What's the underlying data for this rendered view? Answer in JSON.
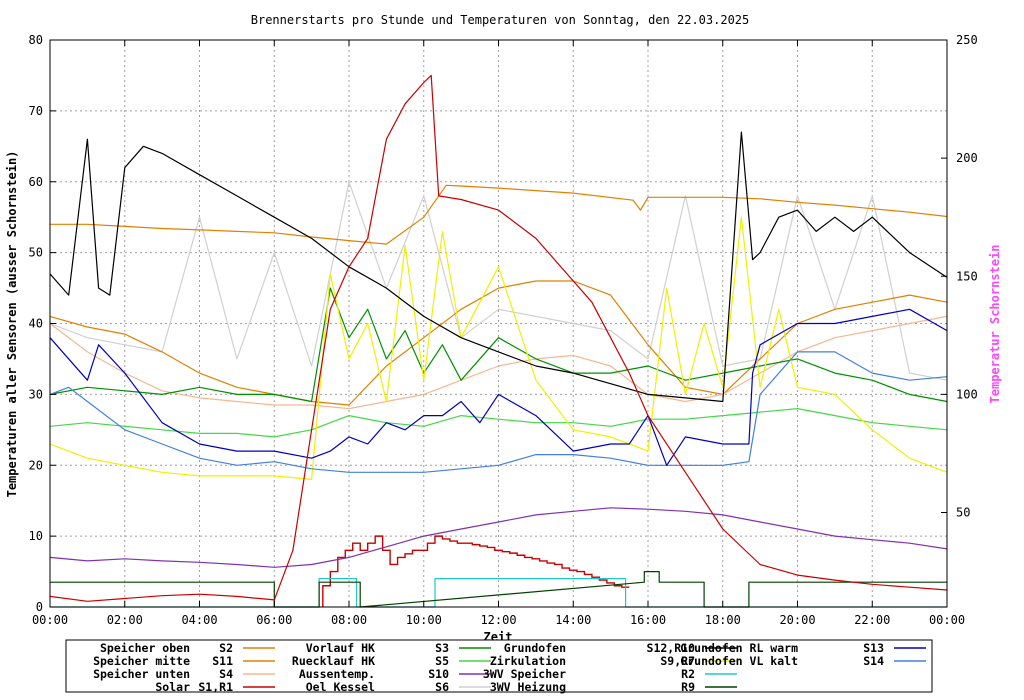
{
  "chart_data": {
    "type": "line",
    "title": "Brennerstarts pro Stunde und Temperaturen von Sonntag, den 22.03.2025",
    "xlabel": "Zeit",
    "ylabel": "Temperaturen aller Sensoren (ausser Schornstein)",
    "y2label": "Temperatur Schornstein",
    "xlim": [
      0,
      24
    ],
    "ylim": [
      0,
      80
    ],
    "y2lim": [
      10,
      250
    ],
    "grid": true,
    "legend": "bottom",
    "x_ticks": [
      {
        "v": 0,
        "label": "00:00"
      },
      {
        "v": 2,
        "label": "02:00"
      },
      {
        "v": 4,
        "label": "04:00"
      },
      {
        "v": 6,
        "label": "06:00"
      },
      {
        "v": 8,
        "label": "08:00"
      },
      {
        "v": 10,
        "label": "10:00"
      },
      {
        "v": 12,
        "label": "12:00"
      },
      {
        "v": 14,
        "label": "14:00"
      },
      {
        "v": 16,
        "label": "16:00"
      },
      {
        "v": 18,
        "label": "18:00"
      },
      {
        "v": 20,
        "label": "20:00"
      },
      {
        "v": 22,
        "label": "22:00"
      },
      {
        "v": 24,
        "label": "00:00"
      }
    ],
    "y_ticks": [
      {
        "v": 0,
        "label": "0"
      },
      {
        "v": 10,
        "label": "10"
      },
      {
        "v": 20,
        "label": "20"
      },
      {
        "v": 30,
        "label": "30"
      },
      {
        "v": 40,
        "label": "40"
      },
      {
        "v": 50,
        "label": "50"
      },
      {
        "v": 60,
        "label": "60"
      },
      {
        "v": 70,
        "label": "70"
      },
      {
        "v": 80,
        "label": "80"
      }
    ],
    "y2_ticks": [
      {
        "v": 50,
        "label": "50"
      },
      {
        "v": 100,
        "label": "100"
      },
      {
        "v": 150,
        "label": "150"
      },
      {
        "v": 200,
        "label": "200"
      },
      {
        "v": 250,
        "label": "250"
      }
    ],
    "series": [
      {
        "name": "Speicher oben",
        "code": "S2",
        "color": "#e08000",
        "x": [
          0,
          1,
          2,
          3,
          4,
          5,
          6,
          7,
          8,
          9,
          10,
          10.6,
          11,
          12,
          14,
          15.6,
          15.8,
          16,
          17,
          18,
          19,
          20,
          21,
          22,
          23,
          24
        ],
        "y": [
          54,
          54,
          53.7,
          53.4,
          53.2,
          53,
          52.8,
          52.2,
          51.7,
          51.2,
          55,
          59.5,
          59.4,
          59.1,
          58.4,
          57.4,
          56,
          57.8,
          57.8,
          57.8,
          57.6,
          57.1,
          56.7,
          56.2,
          55.7,
          55.1
        ]
      },
      {
        "name": "Speicher mitte",
        "code": "S11",
        "color": "#e08000",
        "x": [
          0,
          1,
          2,
          3,
          4,
          5,
          6,
          7,
          8,
          9,
          10,
          11,
          12,
          13,
          14,
          15,
          16,
          17,
          18,
          19,
          20,
          21,
          22,
          23,
          24
        ],
        "y": [
          41,
          39.5,
          38.5,
          36,
          33,
          31,
          30,
          29,
          28.5,
          34,
          38,
          42,
          45,
          46,
          46,
          44,
          37,
          31,
          30,
          35,
          40,
          42,
          43,
          44,
          43
        ]
      },
      {
        "name": "Speicher unten",
        "code": "S4",
        "color": "#f4b890",
        "x": [
          0,
          1,
          2,
          3,
          4,
          5,
          6,
          7,
          8,
          9,
          10,
          11,
          12,
          13,
          14,
          15,
          16,
          17,
          18,
          19,
          20,
          21,
          22,
          23,
          24
        ],
        "y": [
          40,
          36,
          33,
          30.5,
          29.5,
          29,
          28.5,
          28.5,
          28,
          29,
          30,
          32,
          34,
          35,
          35.5,
          34,
          30,
          29,
          30,
          33,
          36,
          38,
          39,
          40,
          41
        ]
      },
      {
        "name": "Solar",
        "code": "S1,R1",
        "color": "#c80000",
        "x": [
          0,
          1,
          2,
          3,
          4,
          5,
          6,
          6.5,
          7,
          7.5,
          8,
          8.5,
          9,
          9.5,
          10,
          10.2,
          10.4,
          11,
          12,
          13,
          14,
          14.5,
          15,
          15.5,
          16,
          17,
          18,
          19,
          20,
          21,
          22,
          23,
          24
        ],
        "y": [
          1.5,
          0.8,
          1.2,
          1.6,
          1.8,
          1.5,
          1,
          8,
          25,
          42,
          48,
          52,
          66,
          71,
          74,
          75,
          58,
          57.5,
          56,
          52,
          46,
          43,
          38,
          33,
          27,
          19,
          11,
          6,
          4.5,
          3.8,
          3.2,
          2.8,
          2.4
        ]
      },
      {
        "name": "Vorlauf HK",
        "code": "S3",
        "color": "#009000",
        "x": [
          0,
          1,
          2,
          3,
          4,
          5,
          6,
          7,
          7.5,
          8,
          8.5,
          9,
          9.5,
          10,
          10.5,
          11,
          12,
          13,
          14,
          15,
          16,
          17,
          18,
          19,
          20,
          21,
          22,
          23,
          24
        ],
        "y": [
          30,
          31,
          30.5,
          30,
          31,
          30,
          30,
          29,
          45,
          38,
          42,
          35,
          39,
          33,
          37,
          32,
          38,
          35,
          33,
          33,
          34,
          32,
          33,
          34,
          35,
          33,
          32,
          30,
          29
        ]
      },
      {
        "name": "Ruecklauf HK",
        "code": "S5",
        "color": "#44d844",
        "x": [
          0,
          1,
          2,
          3,
          4,
          5,
          6,
          7,
          8,
          9,
          10,
          11,
          12,
          13,
          14,
          15,
          16,
          17,
          18,
          19,
          20,
          21,
          22,
          23,
          24
        ],
        "y": [
          25.5,
          26,
          25.5,
          25,
          24.5,
          24.5,
          24,
          25,
          27,
          26,
          25.5,
          27,
          26.5,
          26,
          26,
          25.5,
          26.5,
          26.5,
          27,
          27.5,
          28,
          27,
          26,
          25.5,
          25
        ]
      },
      {
        "name": "Aussentemp.",
        "code": "S10",
        "color": "#8030b0",
        "x": [
          0,
          1,
          2,
          3,
          4,
          5,
          6,
          7,
          8,
          9,
          10,
          11,
          12,
          13,
          14,
          15,
          16,
          17,
          18,
          19,
          20,
          21,
          22,
          23,
          24
        ],
        "y": [
          7,
          6.5,
          6.8,
          6.5,
          6.3,
          6,
          5.6,
          6,
          7,
          8.5,
          10,
          11,
          12,
          13,
          13.5,
          14,
          13.8,
          13.5,
          13,
          12,
          11,
          10,
          9.5,
          9,
          8.2
        ]
      },
      {
        "name": "Oel Kessel",
        "code": "S6",
        "color": "#d0d0d0",
        "x": [
          0,
          1,
          2,
          3,
          4,
          5,
          6,
          7,
          8,
          9,
          10,
          11,
          12,
          13,
          14,
          15,
          16,
          17,
          18,
          19,
          20,
          21,
          22,
          23,
          24
        ],
        "y": [
          40,
          38,
          37,
          36,
          55,
          35,
          50,
          34,
          60,
          45,
          58,
          38,
          42,
          41,
          40,
          39,
          35,
          58,
          34,
          35,
          58,
          42,
          58,
          33,
          32
        ]
      },
      {
        "name": "Grundofen",
        "code": "S12,R10",
        "color": "#000000",
        "x": [
          0,
          0.5,
          1,
          1.3,
          1.6,
          2,
          2.5,
          3,
          4,
          5,
          6,
          7,
          8,
          9,
          10,
          11,
          12,
          13,
          14,
          15,
          16,
          17,
          18,
          18.5,
          18.8,
          19,
          19.5,
          20,
          20.5,
          21,
          21.5,
          22,
          23,
          24
        ],
        "y": [
          47,
          44,
          66,
          45,
          44,
          62,
          65,
          64,
          61,
          58,
          55,
          52,
          48,
          45,
          41,
          38,
          36,
          34,
          33,
          31.5,
          30,
          29.5,
          29,
          67,
          49,
          50,
          55,
          56,
          53,
          55,
          53,
          55,
          50,
          46.5
        ]
      },
      {
        "name": "Zirkulation",
        "code": "S9,R7",
        "color": "#f0f000",
        "x": [
          0,
          1,
          2,
          3,
          4,
          5,
          6,
          7,
          7.5,
          8,
          8.5,
          9,
          9.5,
          10,
          10.5,
          11,
          12,
          13,
          14,
          15,
          16,
          16.5,
          17,
          17.5,
          18,
          18.5,
          19,
          19.5,
          20,
          21,
          22,
          23,
          24
        ],
        "y": [
          23,
          21,
          20,
          19,
          18.5,
          18.5,
          18.5,
          18,
          47,
          35,
          40,
          29,
          51,
          32,
          53,
          38,
          48,
          32,
          25,
          24,
          22,
          45,
          30,
          40,
          31,
          55,
          31,
          42,
          31,
          30,
          25,
          21,
          19
        ]
      },
      {
        "name": "3WV Speicher",
        "code": "R2",
        "color": "#20c8c8",
        "x": [
          0,
          7.2,
          7.2,
          8.2,
          8.2,
          10.3,
          10.3,
          15.4,
          15.4,
          24
        ],
        "y": [
          0,
          0,
          4,
          4,
          0,
          0,
          4,
          4,
          0,
          0
        ]
      },
      {
        "name": "3WV Heizung",
        "code": "R9",
        "color": "#004000",
        "x": [
          0,
          6,
          6,
          7.2,
          7.2,
          8.3,
          8.3,
          15.9,
          15.9,
          16.3,
          16.3,
          17.5,
          17.5,
          18.7,
          18.7,
          24
        ],
        "y": [
          3.5,
          3.5,
          0,
          0,
          3.5,
          3.5,
          0,
          3.5,
          5,
          5,
          3.5,
          3.5,
          0,
          0,
          3.5,
          3.5
        ]
      },
      {
        "name": "Grundofen RL warm",
        "code": "S13",
        "color": "#0000c0",
        "x": [
          0,
          1,
          1.3,
          2,
          3,
          4,
          5,
          6,
          7,
          7.5,
          8,
          8.5,
          9,
          9.5,
          10,
          10.5,
          11,
          11.5,
          12,
          13,
          14,
          15,
          15.5,
          16,
          16.5,
          17,
          18,
          18.7,
          18.8,
          19,
          20,
          21,
          22,
          23,
          24
        ],
        "y": [
          38,
          32,
          37,
          33,
          26,
          23,
          22,
          22,
          21,
          22,
          24,
          23,
          26,
          25,
          27,
          27,
          29,
          26,
          30,
          27,
          22,
          23,
          23,
          27,
          20,
          24,
          23,
          23,
          33,
          37,
          40,
          40,
          41,
          42,
          39
        ]
      },
      {
        "name": "Grundofen VL kalt",
        "code": "S14",
        "color": "#4080e0",
        "x": [
          0,
          0.5,
          1,
          2,
          3,
          4,
          5,
          6,
          7,
          8,
          9,
          10,
          11,
          12,
          13,
          14,
          15,
          16,
          17,
          18,
          18.7,
          19,
          20,
          21,
          22,
          23,
          24
        ],
        "y": [
          30,
          31,
          29,
          25,
          23,
          21,
          20,
          20.5,
          19.5,
          19,
          19,
          19,
          19.5,
          20,
          21.5,
          21.5,
          21,
          20,
          20,
          20,
          20.5,
          30,
          36,
          36,
          33,
          32,
          32.5
        ]
      }
    ],
    "burner_starts": {
      "name": "Brennerstarts",
      "color": "#c80000",
      "x": [
        7.3,
        7.5,
        7.7,
        7.9,
        8.1,
        8.3,
        8.5,
        8.7,
        8.9,
        9.1,
        9.3,
        9.5,
        9.7,
        9.9,
        10.1,
        10.3,
        10.5,
        10.7,
        10.9,
        11.1,
        11.3,
        11.5,
        11.7,
        11.9,
        12.1,
        12.3,
        12.5,
        12.7,
        12.9,
        13.1,
        13.3,
        13.5,
        13.7,
        13.9,
        14.1,
        14.3,
        14.5,
        14.7,
        14.9,
        15.1,
        15.3
      ],
      "y": [
        3,
        5,
        7,
        8,
        9,
        8,
        9,
        10,
        8,
        6,
        7,
        7.5,
        8,
        8,
        9,
        10,
        9.6,
        9.3,
        9,
        9,
        8.8,
        8.6,
        8.4,
        8,
        7.8,
        7.6,
        7.3,
        7,
        6.8,
        6.5,
        6.2,
        6,
        5.5,
        5.2,
        5,
        4.6,
        4.2,
        3.8,
        3.4,
        3,
        2.8
      ]
    }
  }
}
